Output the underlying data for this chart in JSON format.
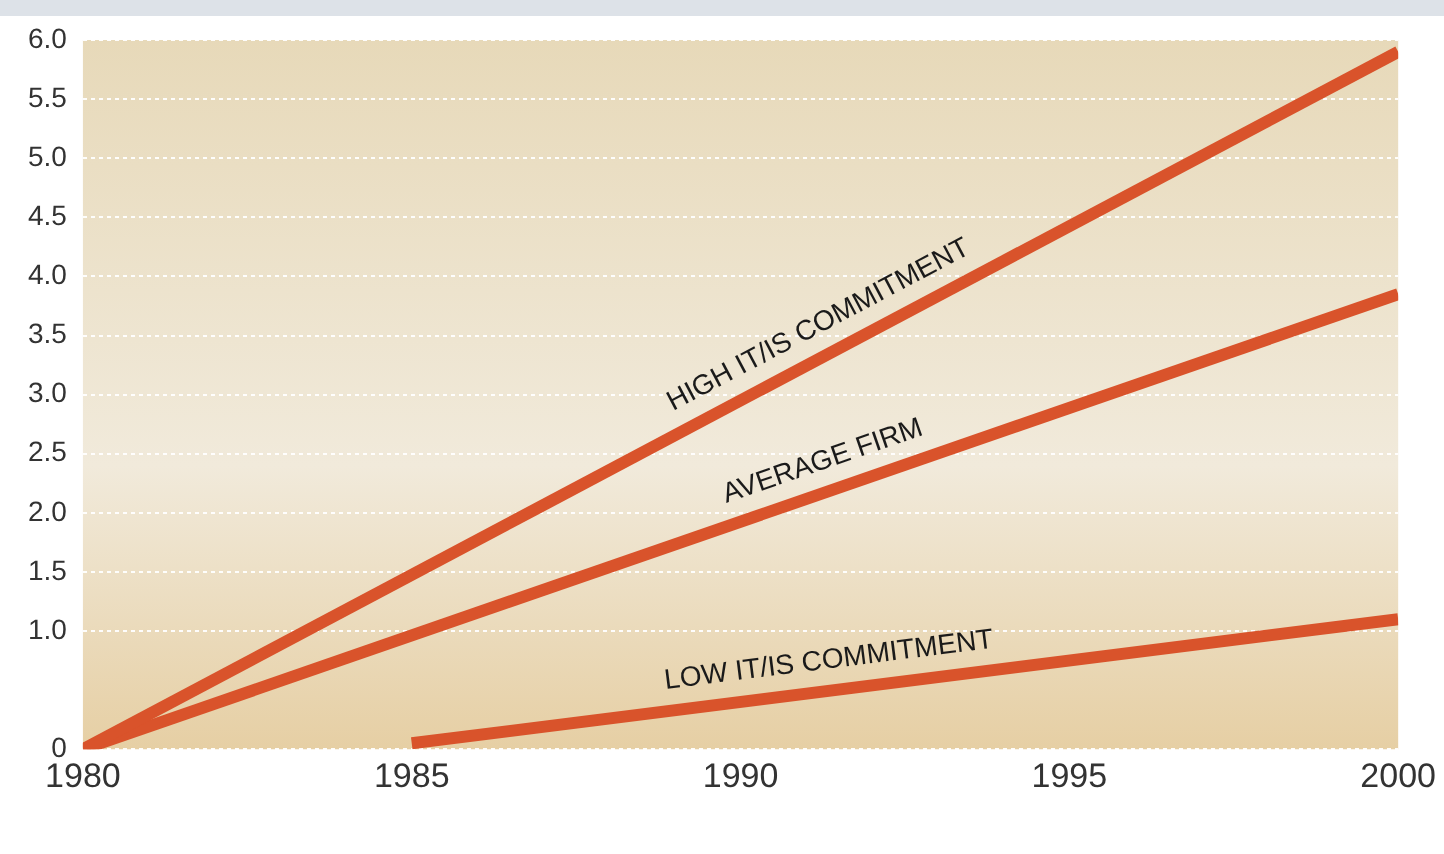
{
  "chart_data": {
    "type": "line",
    "x": [
      1980,
      2000
    ],
    "series": [
      {
        "name": "HIGH IT/IS COMMITMENT",
        "color": "#d9532b",
        "values": [
          0,
          5.9
        ]
      },
      {
        "name": "AVERAGE FIRM",
        "color": "#d9532b",
        "values": [
          0,
          3.85
        ]
      },
      {
        "name": "LOW IT/IS COMMITMENT",
        "color": "#d9532b",
        "x": [
          1985,
          2000
        ],
        "values": [
          0.05,
          1.1
        ]
      }
    ],
    "xlim": [
      1980,
      2000
    ],
    "xticks": [
      1980,
      1985,
      1990,
      1995,
      2000
    ],
    "ylim": [
      0,
      6
    ],
    "yticks": [
      0,
      {
        "value": 1,
        "label": "1.0"
      },
      1.5,
      {
        "value": 2,
        "label": "2.0"
      },
      2.5,
      {
        "value": 3,
        "label": "3.0"
      },
      3.5,
      {
        "value": 4,
        "label": "4.0"
      },
      4.5,
      {
        "value": 5,
        "label": "5.0"
      },
      5.5,
      {
        "value": 6,
        "label": "6.0"
      }
    ],
    "grid": "y"
  }
}
